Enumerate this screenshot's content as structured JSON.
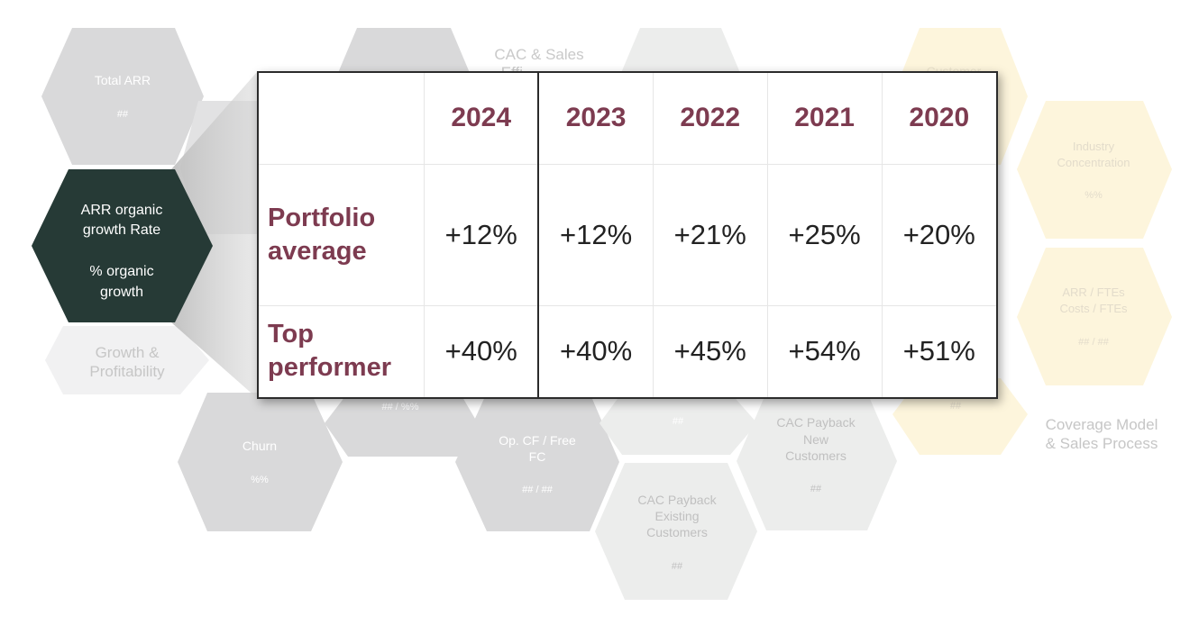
{
  "hexagons": {
    "total_arr": {
      "title": "Total ARR",
      "value": "##"
    },
    "arr_organic": {
      "line1": "ARR organic",
      "line2": "growth Rate",
      "line3": "% organic",
      "line4": "growth"
    },
    "growth_profitability": {
      "line1": "Growth &",
      "line2": "Profitability"
    },
    "cac_sales": {
      "line1": "CAC & Sales",
      "line2": "Effi..."
    },
    "customer": {
      "title": "Customer"
    },
    "industry": {
      "line1": "Industry",
      "line2": "Concentration",
      "value": "%%"
    },
    "arr_ftes": {
      "line1": "ARR / FTEs",
      "line2": "Costs / FTEs",
      "value": "## / ##"
    },
    "churn": {
      "title": "Churn",
      "value": "%%"
    },
    "hidden_ratio": {
      "value": "## / %%"
    },
    "op_cf": {
      "line1": "Op. CF / Free",
      "line2": "FC",
      "value": "## / ##"
    },
    "hidden_hash": {
      "value": "##"
    },
    "cac_new": {
      "line1": "CAC Payback",
      "line2": "New",
      "line3": "Customers",
      "value": "##"
    },
    "cac_existing": {
      "line1": "CAC Payback",
      "line2": "Existing",
      "line3": "Customers",
      "value": "##"
    },
    "coverage": {
      "line1": "Coverage Model",
      "line2": "& Sales Process"
    },
    "right_hash": {
      "value": "##"
    }
  },
  "table": {
    "years": [
      "2024",
      "2023",
      "2022",
      "2021",
      "2020"
    ],
    "rows": [
      {
        "label_line1": "Portfolio",
        "label_line2": "average",
        "values": [
          "+12%",
          "+12%",
          "+21%",
          "+25%",
          "+20%"
        ]
      },
      {
        "label_line1": "Top",
        "label_line2": "performer",
        "values": [
          "+40%",
          "+40%",
          "+45%",
          "+54%",
          "+51%"
        ]
      }
    ]
  },
  "colors": {
    "accent": "#7d3b50",
    "active_hex": "#263a36",
    "hex_gray": "#d9d9da",
    "hex_yellow": "#fdf5dc"
  }
}
